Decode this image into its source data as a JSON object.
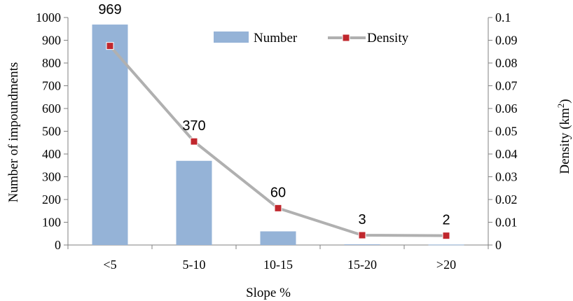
{
  "chart_data": {
    "type": "bar+line",
    "categories": [
      "<5",
      "5-10",
      "10-15",
      "15-20",
      ">20"
    ],
    "series": [
      {
        "name": "Number",
        "type": "bar",
        "axis": "left",
        "values": [
          969,
          370,
          60,
          3,
          2
        ],
        "color": "#95b3d7",
        "data_labels": [
          "969",
          "370",
          "60",
          "3",
          "2"
        ]
      },
      {
        "name": "Density",
        "type": "line",
        "axis": "right",
        "values": [
          0.0875,
          0.0455,
          0.0162,
          0.0043,
          0.0041
        ],
        "line_color": "#b0b0b0",
        "marker_color": "#c0272d"
      }
    ],
    "xlabel": "Slope %",
    "ylabel_left": "Number of impoundments",
    "ylabel_right_main": "Density (km",
    "ylabel_right_sup": "2",
    "ylabel_right_end": ")",
    "ylim_left": [
      0,
      1000
    ],
    "yticks_left": [
      "0",
      "100",
      "200",
      "300",
      "400",
      "500",
      "600",
      "700",
      "800",
      "900",
      "1000"
    ],
    "ylim_right": [
      0,
      0.1
    ],
    "yticks_right": [
      "0",
      "0.01",
      "0.02",
      "0.03",
      "0.04",
      "0.05",
      "0.06",
      "0.07",
      "0.08",
      "0.09",
      "0.1"
    ],
    "legend_position": "top-center",
    "grid": false
  }
}
